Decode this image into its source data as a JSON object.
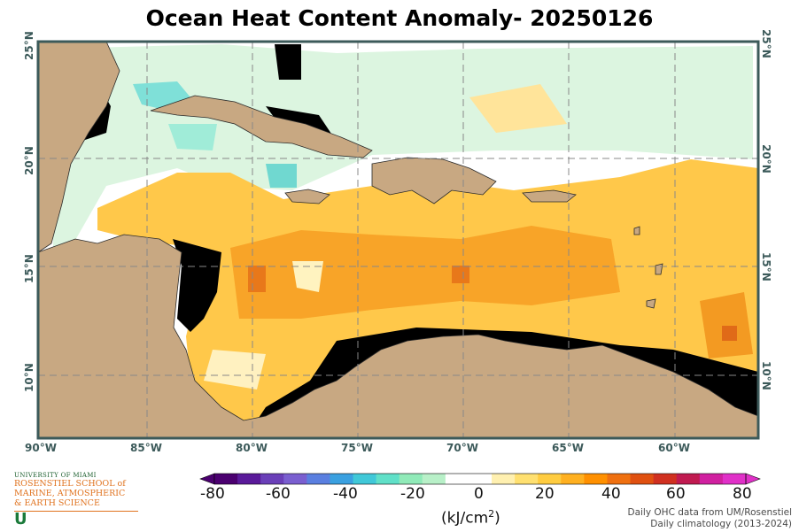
{
  "title": "Ocean Heat Content Anomaly- 20250126",
  "map": {
    "lon_range": [
      -90,
      -56
    ],
    "lat_range": [
      7,
      25
    ],
    "lat_ticks": [
      "25°N",
      "20°N",
      "15°N",
      "10°N"
    ],
    "lon_ticks": [
      "90°W",
      "85°W",
      "80°W",
      "75°W",
      "70°W",
      "65°W",
      "60°W"
    ],
    "colors": {
      "land": "#c8a882",
      "no_data": "#000000",
      "frame": "#3c5a5a",
      "grid": "#888888"
    }
  },
  "colorbar": {
    "ticks": [
      "-80",
      "-60",
      "-40",
      "-20",
      "0",
      "20",
      "40",
      "60",
      "80"
    ],
    "units": "(kJ/cm",
    "units_sup": "2",
    "units_close": ")",
    "colors": [
      "#4b0070",
      "#5a1a9a",
      "#6a3fb8",
      "#7a5fd0",
      "#5a7fe0",
      "#3aa0e0",
      "#40c8d8",
      "#60e0c8",
      "#90eab8",
      "#b8f0c8",
      "#ffffff",
      "#ffffff",
      "#fff0b0",
      "#ffe070",
      "#ffcc40",
      "#ffb020",
      "#ff9000",
      "#ef7010",
      "#e05010",
      "#d03020",
      "#c01a50",
      "#d020a0",
      "#e030c8"
    ]
  },
  "credit": {
    "line1": "Daily OHC data from UM/Rosenstiel",
    "line2": "Daily climatology (2013-2024)"
  },
  "logo": {
    "line1": "UNIVERSITY OF MIAMI",
    "line2": "ROSENSTIEL SCHOOL of",
    "line3": "MARINE, ATMOSPHERIC",
    "line4": "& EARTH SCIENCE",
    "mark": "U"
  }
}
